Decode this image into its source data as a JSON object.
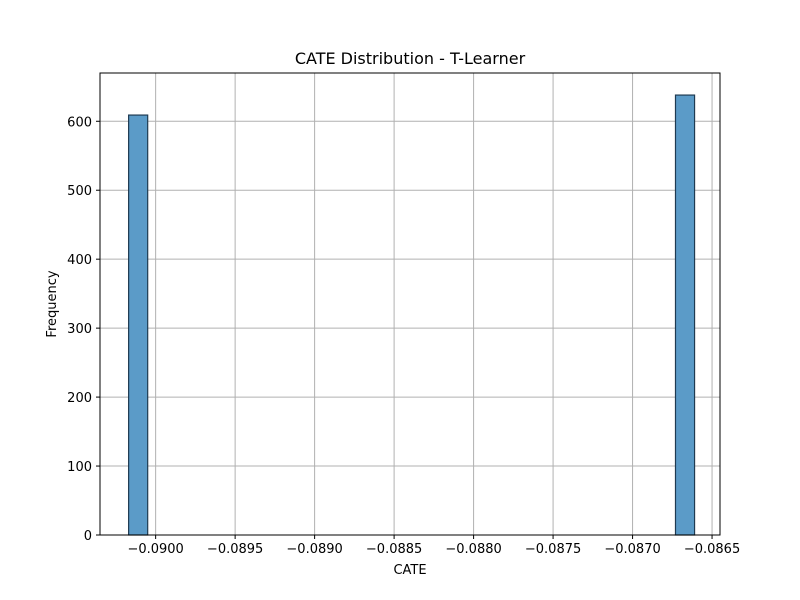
{
  "chart_data": {
    "type": "bar",
    "title": "CATE Distribution - T-Learner",
    "xlabel": "CATE",
    "ylabel": "Frequency",
    "xlim": [
      -0.09035,
      -0.08645
    ],
    "ylim": [
      0,
      670
    ],
    "x_ticks": [
      -0.09,
      -0.0895,
      -0.089,
      -0.0885,
      -0.088,
      -0.0875,
      -0.087,
      -0.0865
    ],
    "x_tick_labels": [
      "−0.0900",
      "−0.0895",
      "−0.0890",
      "−0.0885",
      "−0.0880",
      "−0.0875",
      "−0.0870",
      "−0.0865"
    ],
    "y_ticks": [
      0,
      100,
      200,
      300,
      400,
      500,
      600
    ],
    "y_tick_labels": [
      "0",
      "100",
      "200",
      "300",
      "400",
      "500",
      "600"
    ],
    "grid": true,
    "bins": [
      {
        "x0": -0.09017,
        "x1": -0.09005,
        "count": 609
      },
      {
        "x0": -0.08673,
        "x1": -0.08661,
        "count": 638
      }
    ],
    "bar_color": "#5b9bc8",
    "bar_edge_color": "#1f3b52"
  }
}
